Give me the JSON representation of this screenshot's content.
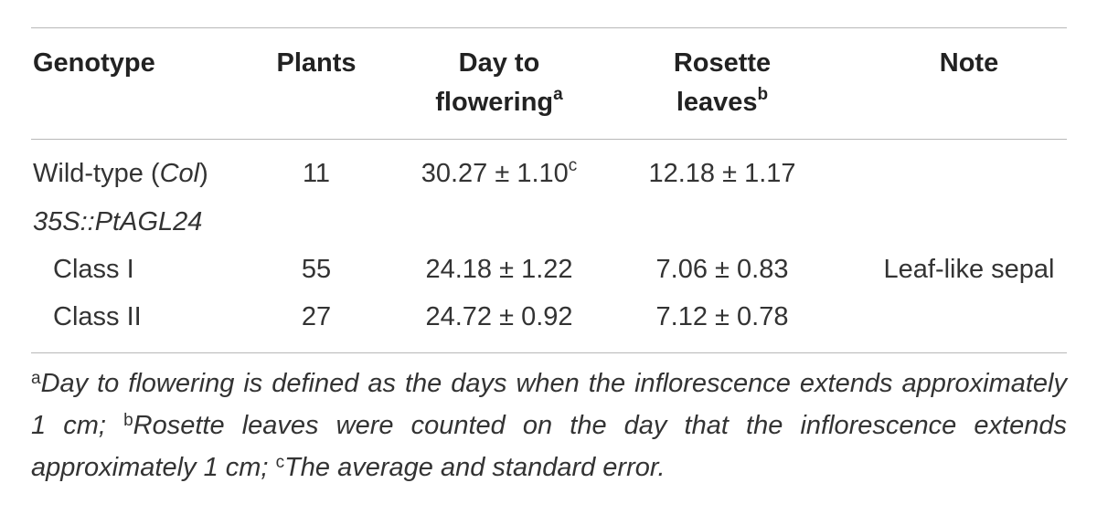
{
  "table": {
    "headers": {
      "genotype": "Genotype",
      "plants": "Plants",
      "day_to_flowering_line1": "Day to",
      "day_to_flowering_line2": "flowering",
      "day_to_flowering_mark": "a",
      "rosette_line1": "Rosette",
      "rosette_line2": "leaves",
      "rosette_mark": "b",
      "note": "Note"
    },
    "rows": [
      {
        "genotype_prefix": "Wild-type (",
        "genotype_italic": "Col",
        "genotype_suffix": ")",
        "plants": "11",
        "day_to_flowering": "30.27 ± 1.10",
        "day_to_flowering_mark": "c",
        "rosette_leaves": "12.18 ± 1.17",
        "note": ""
      },
      {
        "genotype_italic": "35S::PtAGL24"
      },
      {
        "genotype": "Class I",
        "plants": "55",
        "day_to_flowering": "24.18 ± 1.22",
        "rosette_leaves": "7.06 ± 0.83",
        "note": "Leaf-like sepal"
      },
      {
        "genotype": "Class II",
        "plants": "27",
        "day_to_flowering": "24.72 ± 0.92",
        "rosette_leaves": "7.12 ± 0.78",
        "note": ""
      }
    ]
  },
  "footnote": {
    "mark_a": "a",
    "text_a": "Day to flowering is defined as the days when the inflorescence extends approximately 1 cm;",
    "mark_b": "b",
    "text_b": "Rosette leaves were counted on the day that the inflorescence extends approximately 1 cm;",
    "mark_c": "c",
    "text_c": "The average and standard error."
  }
}
